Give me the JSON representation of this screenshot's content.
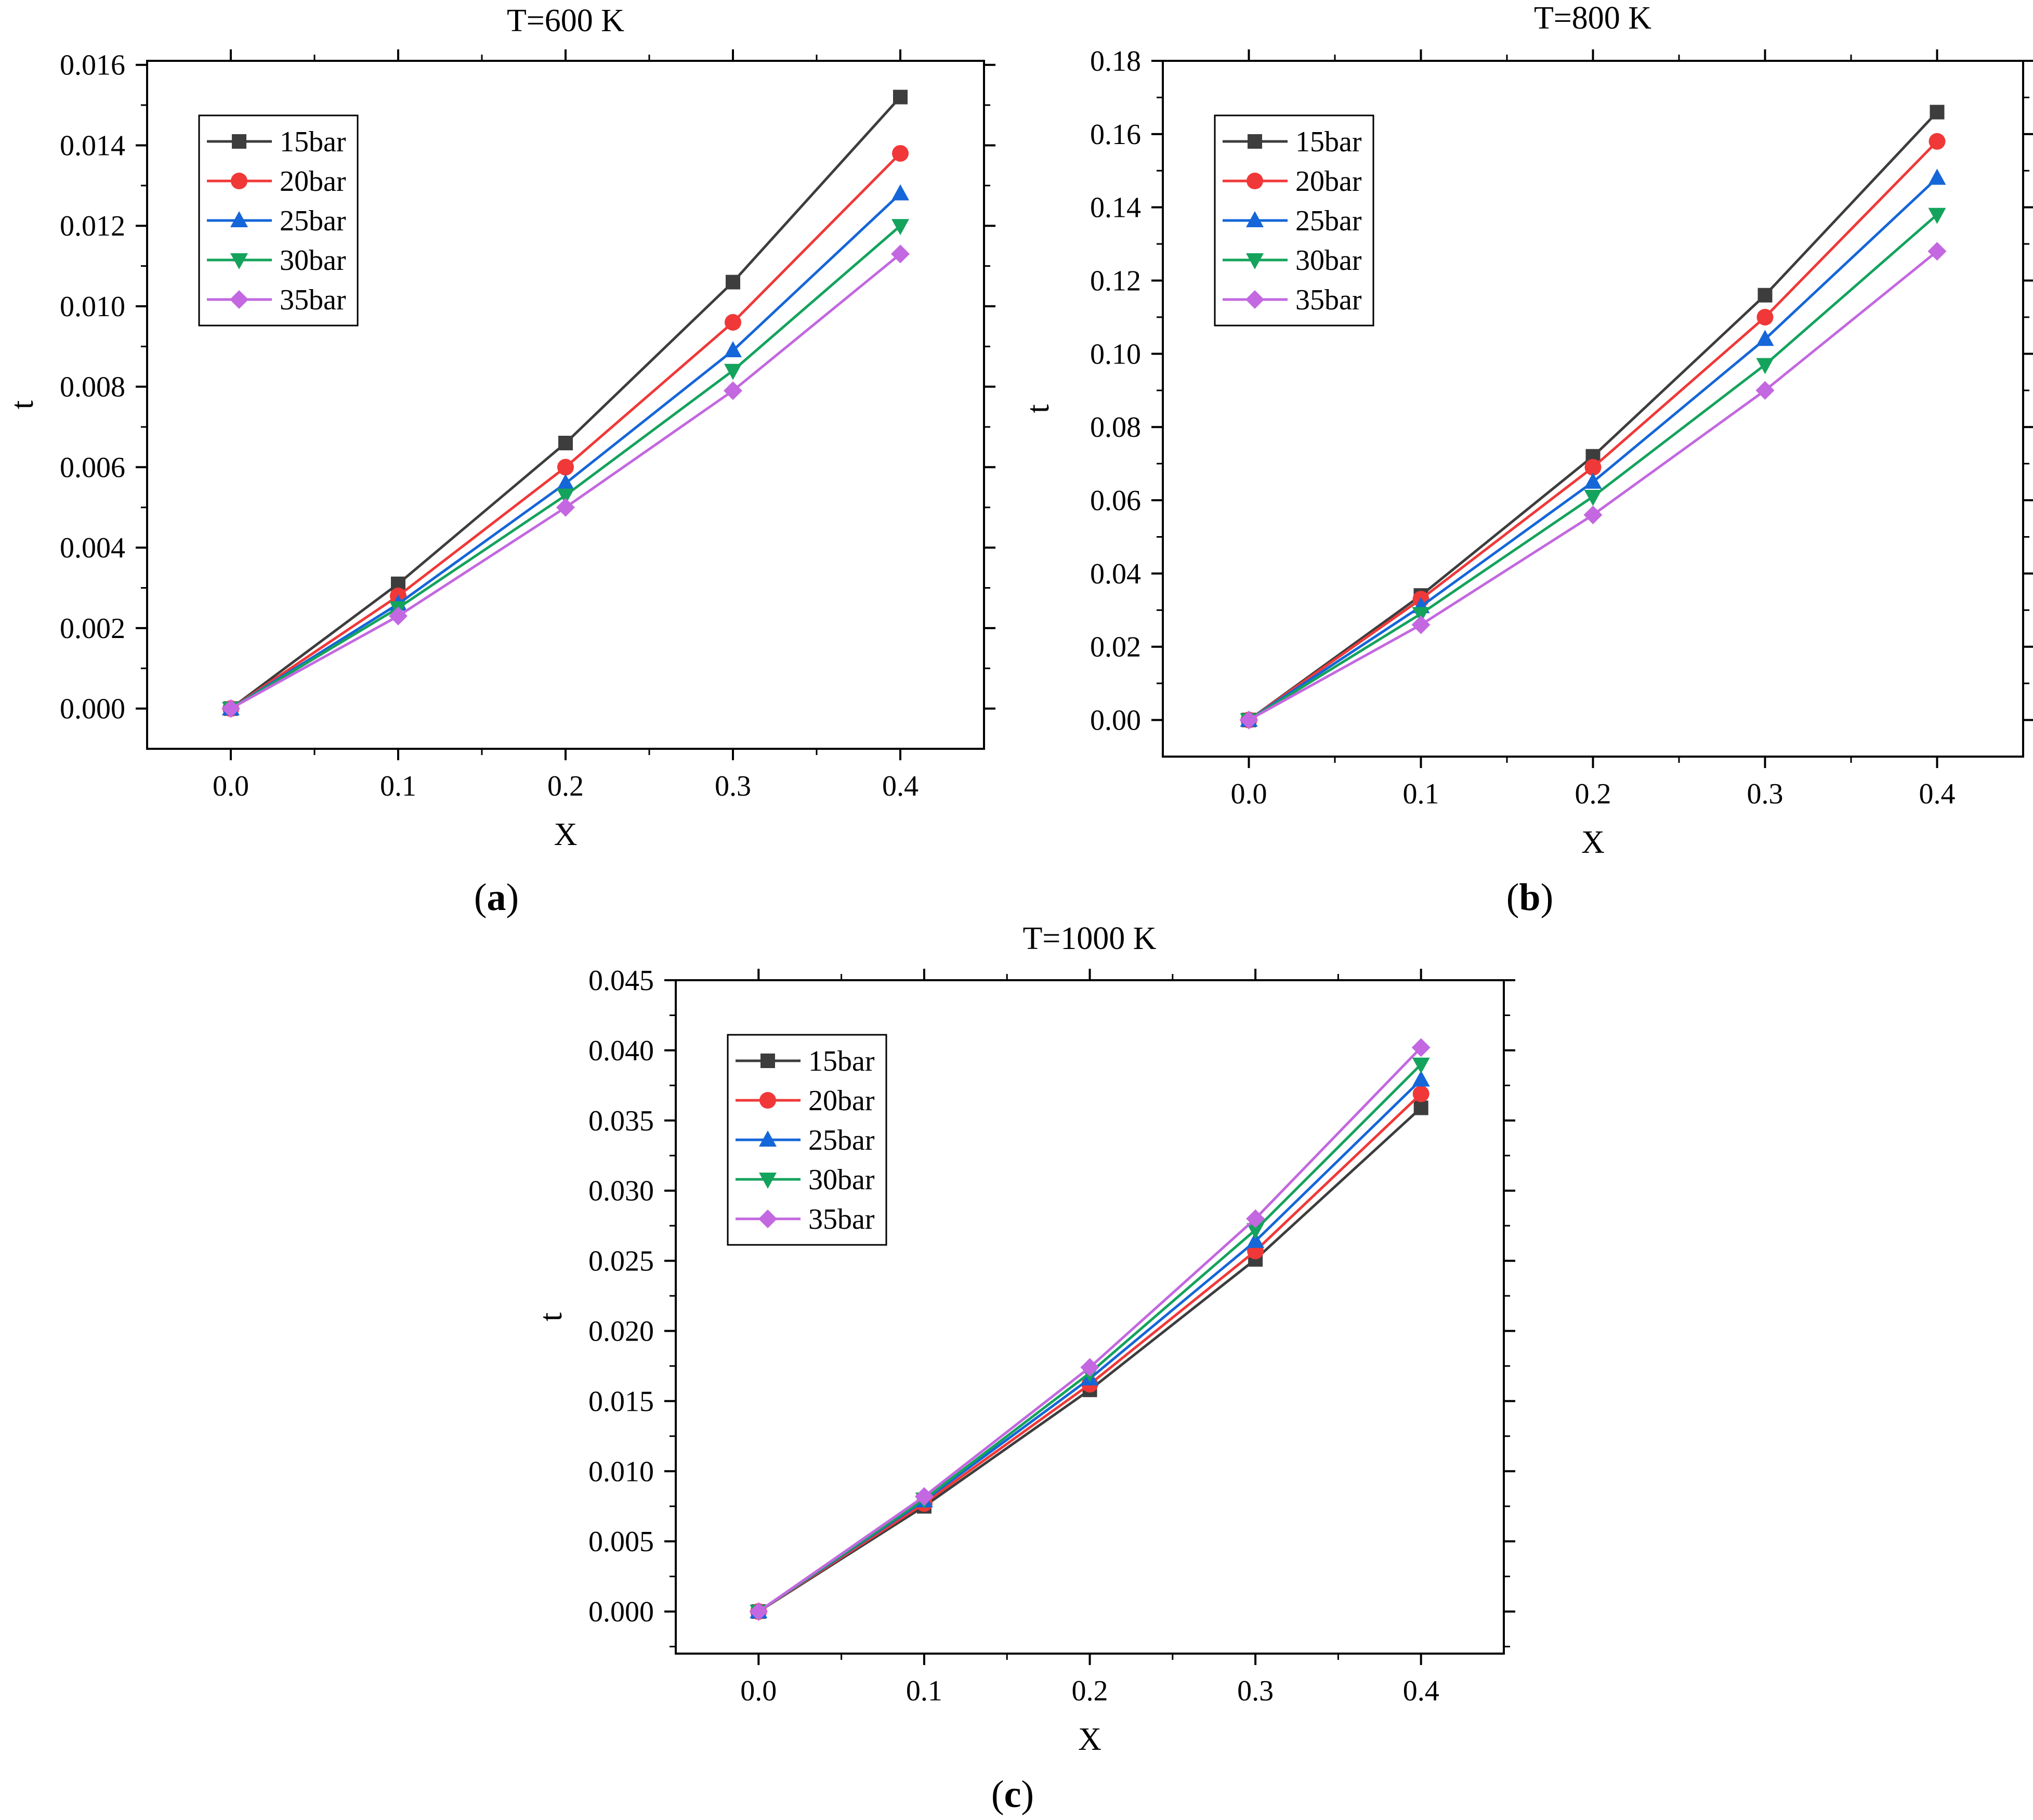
{
  "colors": {
    "15bar": "#3d3d3d",
    "20bar": "#f03838",
    "25bar": "#1566d8",
    "30bar": "#14a35c",
    "35bar": "#c368e0"
  },
  "chart_data": [
    {
      "type": "line",
      "title": "T=600 K",
      "caption": "a",
      "xlabel": "X",
      "ylabel": "t",
      "x": [
        0.0,
        0.1,
        0.2,
        0.3,
        0.4
      ],
      "xticks": [
        "0.0",
        "0.1",
        "0.2",
        "0.3",
        "0.4"
      ],
      "xlim": [
        -0.05,
        0.45
      ],
      "ylim": [
        -0.001,
        0.0161
      ],
      "yticks": [
        "0.000",
        "0.002",
        "0.004",
        "0.006",
        "0.008",
        "0.010",
        "0.012",
        "0.014",
        "0.016"
      ],
      "legend_position": "top-left",
      "series": [
        {
          "name": "15bar",
          "marker": "square",
          "values": [
            0.0,
            0.0031,
            0.0066,
            0.0106,
            0.0152
          ]
        },
        {
          "name": "20bar",
          "marker": "circle",
          "values": [
            0.0,
            0.0028,
            0.006,
            0.0096,
            0.0138
          ]
        },
        {
          "name": "25bar",
          "marker": "triangle-up",
          "values": [
            0.0,
            0.0026,
            0.0056,
            0.0089,
            0.0128
          ]
        },
        {
          "name": "30bar",
          "marker": "triangle-down",
          "values": [
            0.0,
            0.0025,
            0.0053,
            0.0084,
            0.012
          ]
        },
        {
          "name": "35bar",
          "marker": "diamond",
          "values": [
            0.0,
            0.0023,
            0.005,
            0.0079,
            0.0113
          ]
        }
      ]
    },
    {
      "type": "line",
      "title": "T=800 K",
      "caption": "b",
      "xlabel": "X",
      "ylabel": "t",
      "x": [
        0.0,
        0.1,
        0.2,
        0.3,
        0.4
      ],
      "xticks": [
        "0.0",
        "0.1",
        "0.2",
        "0.3",
        "0.4"
      ],
      "xlim": [
        -0.05,
        0.45
      ],
      "ylim": [
        -0.01,
        0.18
      ],
      "yticks": [
        "0.00",
        "0.02",
        "0.04",
        "0.06",
        "0.08",
        "0.10",
        "0.12",
        "0.14",
        "0.16",
        "0.18"
      ],
      "legend_position": "top-left",
      "series": [
        {
          "name": "15bar",
          "marker": "square",
          "values": [
            0.0,
            0.034,
            0.072,
            0.116,
            0.166
          ]
        },
        {
          "name": "20bar",
          "marker": "circle",
          "values": [
            0.0,
            0.033,
            0.069,
            0.11,
            0.158
          ]
        },
        {
          "name": "25bar",
          "marker": "triangle-up",
          "values": [
            0.0,
            0.031,
            0.065,
            0.104,
            0.148
          ]
        },
        {
          "name": "30bar",
          "marker": "triangle-down",
          "values": [
            0.0,
            0.029,
            0.061,
            0.097,
            0.138
          ]
        },
        {
          "name": "35bar",
          "marker": "diamond",
          "values": [
            0.0,
            0.026,
            0.056,
            0.09,
            0.128
          ]
        }
      ]
    },
    {
      "type": "line",
      "title": "T=1000 K",
      "caption": "c",
      "xlabel": "X",
      "ylabel": "t",
      "x": [
        0.0,
        0.1,
        0.2,
        0.3,
        0.4
      ],
      "xticks": [
        "0.0",
        "0.1",
        "0.2",
        "0.3",
        "0.4"
      ],
      "xlim": [
        -0.05,
        0.45
      ],
      "ylim": [
        -0.003,
        0.045
      ],
      "yticks": [
        "0.000",
        "0.005",
        "0.010",
        "0.015",
        "0.020",
        "0.025",
        "0.030",
        "0.035",
        "0.040",
        "0.045"
      ],
      "legend_position": "top-left",
      "series": [
        {
          "name": "15bar",
          "marker": "square",
          "values": [
            0.0,
            0.0075,
            0.0158,
            0.0251,
            0.0359
          ]
        },
        {
          "name": "20bar",
          "marker": "circle",
          "values": [
            0.0,
            0.0077,
            0.0162,
            0.0257,
            0.0369
          ]
        },
        {
          "name": "25bar",
          "marker": "triangle-up",
          "values": [
            0.0,
            0.0079,
            0.0166,
            0.0264,
            0.0379
          ]
        },
        {
          "name": "30bar",
          "marker": "triangle-down",
          "values": [
            0.0,
            0.008,
            0.017,
            0.0272,
            0.039
          ]
        },
        {
          "name": "35bar",
          "marker": "diamond",
          "values": [
            0.0,
            0.0082,
            0.0174,
            0.028,
            0.0402
          ]
        }
      ]
    }
  ]
}
